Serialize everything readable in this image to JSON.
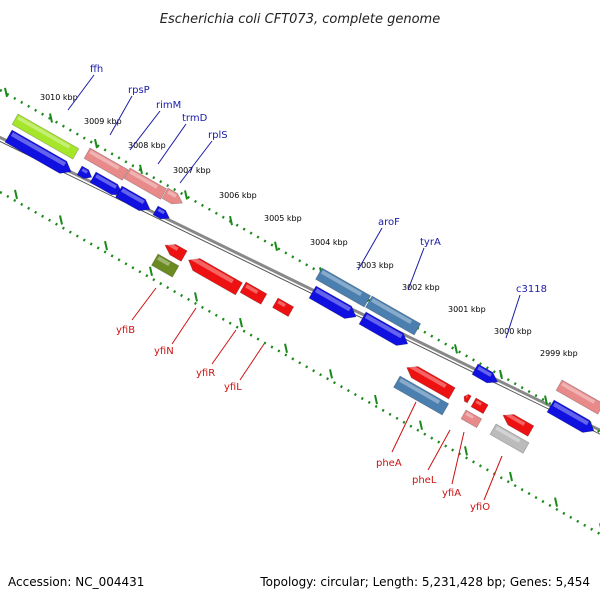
{
  "header": {
    "title": "Escherichia coli CFT073, complete genome"
  },
  "footer": {
    "accession": "Accession: NC_004431",
    "topology": "Topology: circular; Length: 5,231,428 bp; Genes: 5,454"
  },
  "ruler": {
    "labels": [
      "3010 kbp",
      "3009 kbp",
      "3008 kbp",
      "3007 kbp",
      "3006 kbp",
      "3005 kbp",
      "3004 kbp",
      "3003 kbp",
      "3002 kbp",
      "3001 kbp",
      "3000 kbp",
      "2999 kbp"
    ]
  },
  "genes_upper": [
    "ffh",
    "rpsP",
    "rimM",
    "trmD",
    "rplS",
    "aroF",
    "tyrA",
    "c3118"
  ],
  "genes_lower": [
    "yfiB",
    "yfiN",
    "yfiR",
    "yfiL",
    "pheA",
    "pheL",
    "yfiA",
    "yfiO"
  ],
  "colors": {
    "backbone": "#888888",
    "ruler": "#1a8a1a",
    "blue": "#1010e0",
    "steelblue": "#4a7fb0",
    "pink": "#e88a8a",
    "red": "#ee1111",
    "lime": "#a6e62a",
    "olive": "#6b8a22",
    "gray": "#bbbbbb",
    "upper_label": "#1a1aa8",
    "lower_label": "#cc1111"
  }
}
